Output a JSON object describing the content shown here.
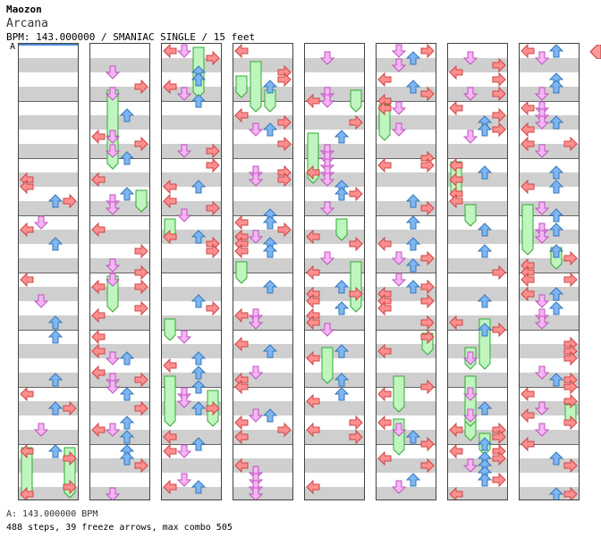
{
  "header": {
    "artist": "Maozon",
    "title": "Arcana",
    "info": "BPM: 143.000000 / SMANIAC SINGLE / 15 feet",
    "marker": "A"
  },
  "footer": {
    "bpm_line": "A: 143.000000 BPM",
    "summary": "488 steps, 39 freeze arrows, max combo 505"
  },
  "colors": {
    "left": "#ff9999",
    "down": "#ffaaff",
    "up": "#99ccff",
    "right": "#ff9999",
    "red_arrow": "#ff8f8f",
    "pink_arrow": "#f7b4f7",
    "blue_arrow": "#7fb6f2",
    "freeze": "#bff5bf",
    "stripe": "#cfcfcf",
    "selection": "#4a8bd6"
  },
  "chart": {
    "columns": 8,
    "measures_per_column": 8,
    "lanes": [
      "left",
      "down",
      "up",
      "right"
    ],
    "steps": 488,
    "freeze_arrows": 39,
    "max_combo": 505
  }
}
